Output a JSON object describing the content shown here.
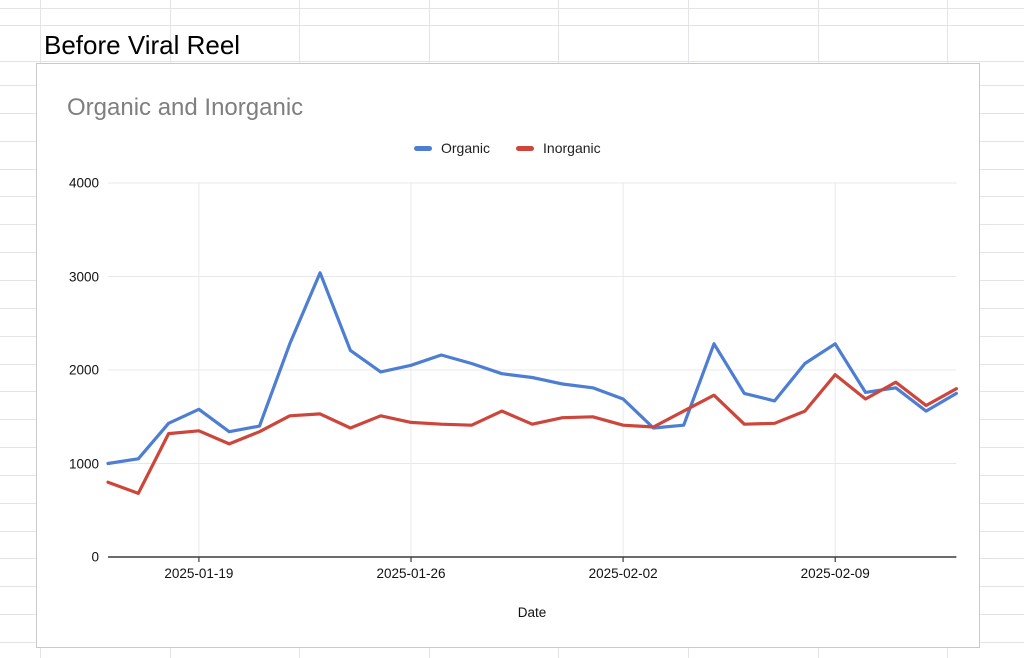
{
  "sheet": {
    "cell_text": "Before Viral Reel"
  },
  "chart": {
    "title": "Organic and Inorganic",
    "xlabel": "Date",
    "legend": [
      {
        "label": "Organic",
        "color": "#4d7ed3"
      },
      {
        "label": "Inorganic",
        "color": "#cc463c"
      }
    ]
  },
  "chart_data": {
    "type": "line",
    "title": "Organic and Inorganic",
    "xlabel": "Date",
    "ylabel": "",
    "ylim": [
      0,
      4000
    ],
    "grid": true,
    "legend_position": "top",
    "x": [
      "2025-01-16",
      "2025-01-17",
      "2025-01-18",
      "2025-01-19",
      "2025-01-20",
      "2025-01-21",
      "2025-01-22",
      "2025-01-23",
      "2025-01-24",
      "2025-01-25",
      "2025-01-26",
      "2025-01-27",
      "2025-01-28",
      "2025-01-29",
      "2025-01-30",
      "2025-01-31",
      "2025-02-01",
      "2025-02-02",
      "2025-02-03",
      "2025-02-04",
      "2025-02-05",
      "2025-02-06",
      "2025-02-07",
      "2025-02-08",
      "2025-02-09",
      "2025-02-10",
      "2025-02-11",
      "2025-02-12",
      "2025-02-13"
    ],
    "series": [
      {
        "name": "Organic",
        "color": "#4d7ed3",
        "values": [
          1000,
          1050,
          1430,
          1580,
          1340,
          1400,
          2280,
          3040,
          2210,
          1980,
          2050,
          2160,
          2070,
          1960,
          1920,
          1850,
          1810,
          1690,
          1380,
          1410,
          2280,
          1750,
          1670,
          2070,
          2280,
          1760,
          1810,
          1560,
          1750
        ]
      },
      {
        "name": "Inorganic",
        "color": "#cc463c",
        "values": [
          800,
          680,
          1320,
          1350,
          1210,
          1340,
          1510,
          1530,
          1380,
          1510,
          1440,
          1420,
          1410,
          1560,
          1420,
          1490,
          1500,
          1410,
          1390,
          1560,
          1730,
          1420,
          1430,
          1560,
          1950,
          1690,
          1870,
          1620,
          1800
        ]
      }
    ],
    "y_ticks": [
      0,
      1000,
      2000,
      3000,
      4000
    ],
    "x_tick_labels": [
      "2025-01-19",
      "2025-01-26",
      "2025-02-02",
      "2025-02-09"
    ],
    "x_tick_indices": [
      3,
      10,
      17,
      24
    ]
  }
}
